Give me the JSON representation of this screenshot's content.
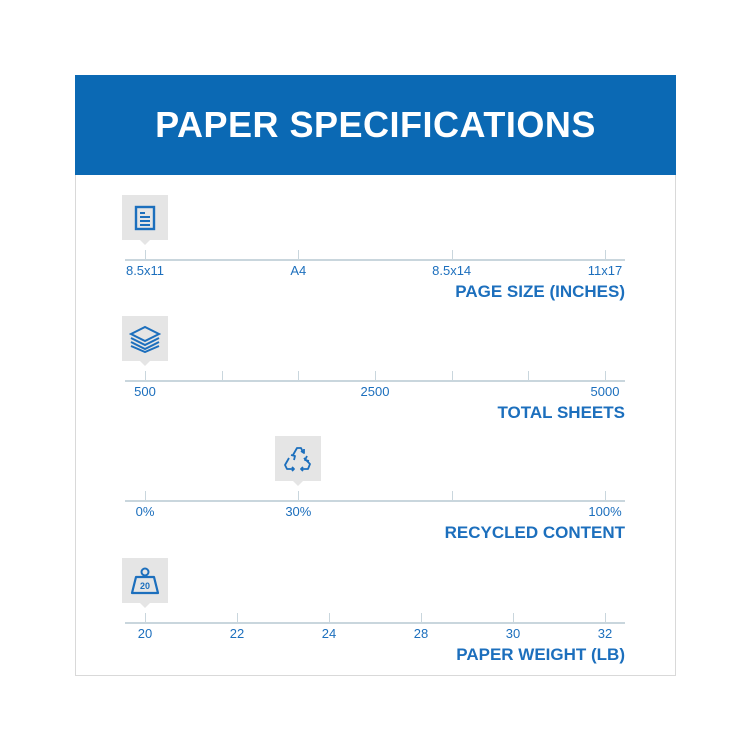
{
  "header": {
    "title": "PAPER SPECIFICATIONS"
  },
  "accent_color": "#0b69b4",
  "specs": [
    {
      "title": "PAGE SIZE (INCHES)",
      "icon": "document-icon",
      "ticks": 4,
      "labels": [
        "8.5x11",
        "A4",
        "8.5x14",
        "11x17"
      ],
      "label_ticks": [
        0,
        1,
        2,
        3
      ],
      "selected": "8.5x11",
      "selected_tick": 0
    },
    {
      "title": "TOTAL SHEETS",
      "icon": "paper-stack-icon",
      "ticks": 7,
      "labels": [
        "500",
        "2500",
        "5000"
      ],
      "label_ticks": [
        0,
        3,
        6
      ],
      "selected": "500",
      "selected_tick": 0
    },
    {
      "title": "RECYCLED CONTENT",
      "icon": "recycle-icon",
      "ticks": 4,
      "labels": [
        "0%",
        "30%",
        "100%"
      ],
      "label_ticks": [
        0,
        1,
        3
      ],
      "selected": "30%",
      "selected_tick": 1
    },
    {
      "title": "PAPER WEIGHT (LB)",
      "icon": "weight-icon",
      "icon_text": "20",
      "ticks": 6,
      "labels": [
        "20",
        "22",
        "24",
        "28",
        "30",
        "32"
      ],
      "label_ticks": [
        0,
        1,
        2,
        3,
        4,
        5
      ],
      "selected": "20",
      "selected_tick": 0
    }
  ]
}
